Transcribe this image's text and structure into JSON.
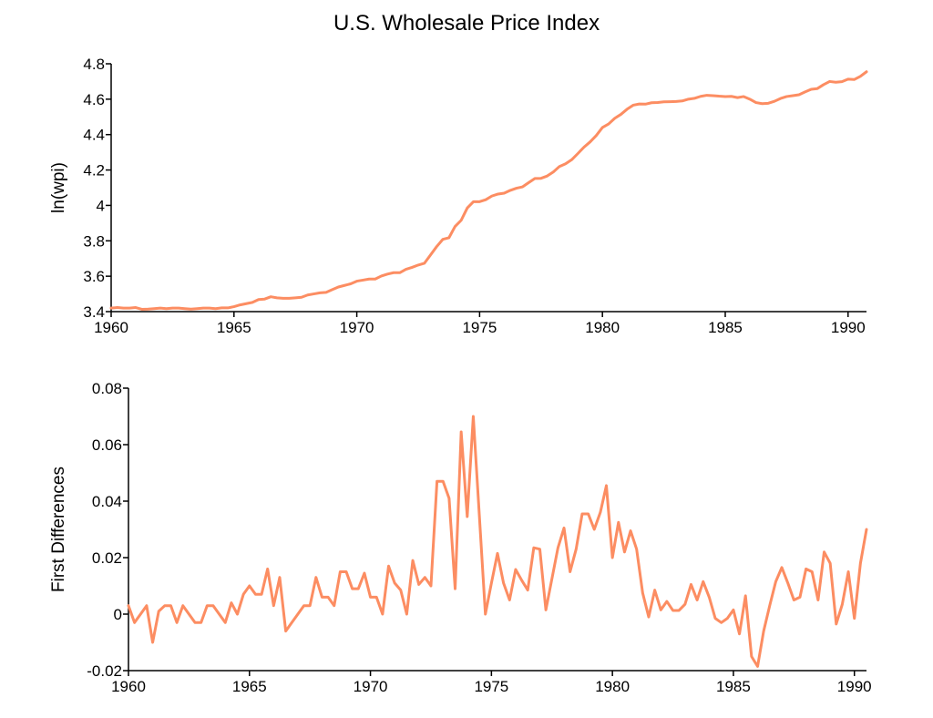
{
  "title": "U.S. Wholesale Price Index",
  "colors": {
    "series": "#fc8d62",
    "axis": "#000000"
  },
  "chart_data": [
    {
      "type": "line",
      "title": "U.S. Wholesale Price Index",
      "xlabel": "",
      "ylabel": "ln(wpi)",
      "x_start": 1960,
      "x_step": 0.25,
      "xlim": [
        1960,
        1990.75
      ],
      "ylim": [
        3.4,
        4.8
      ],
      "grid": false,
      "x_ticks": [
        "1960",
        "1965",
        "1970",
        "1975",
        "1980",
        "1985",
        "1990"
      ],
      "x_tick_values": [
        1960,
        1965,
        1970,
        1975,
        1980,
        1985,
        1990
      ],
      "y_ticks": [
        "3.4",
        "3.6",
        "3.8",
        "4",
        "4.2",
        "4.4",
        "4.6",
        "4.8"
      ],
      "y_tick_values": [
        3.4,
        3.6,
        3.8,
        4.0,
        4.2,
        4.4,
        4.6,
        4.8
      ],
      "series": [
        {
          "name": "ln(wpi)",
          "values": [
            3.42,
            3.423,
            3.42,
            3.42,
            3.423,
            3.413,
            3.414,
            3.417,
            3.42,
            3.417,
            3.42,
            3.42,
            3.417,
            3.414,
            3.417,
            3.42,
            3.42,
            3.417,
            3.421,
            3.421,
            3.428,
            3.438,
            3.445,
            3.452,
            3.468,
            3.471,
            3.484,
            3.478,
            3.475,
            3.475,
            3.478,
            3.481,
            3.494,
            3.5,
            3.506,
            3.509,
            3.524,
            3.539,
            3.548,
            3.557,
            3.572,
            3.578,
            3.584,
            3.584,
            3.601,
            3.612,
            3.62,
            3.62,
            3.639,
            3.65,
            3.663,
            3.673,
            3.72,
            3.767,
            3.808,
            3.817,
            3.881,
            3.916,
            3.986,
            4.021,
            4.021,
            4.032,
            4.053,
            4.064,
            4.069,
            4.085,
            4.097,
            4.105,
            4.129,
            4.152,
            4.153,
            4.166,
            4.189,
            4.22,
            4.235,
            4.258,
            4.293,
            4.329,
            4.359,
            4.395,
            4.44,
            4.46,
            4.492,
            4.514,
            4.543,
            4.566,
            4.573,
            4.572,
            4.58,
            4.581,
            4.585,
            4.586,
            4.587,
            4.59,
            4.6,
            4.605,
            4.616,
            4.622,
            4.62,
            4.617,
            4.615,
            4.616,
            4.609,
            4.615,
            4.6,
            4.581,
            4.575,
            4.577,
            4.588,
            4.604,
            4.615,
            4.62,
            4.625,
            4.641,
            4.656,
            4.66,
            4.682,
            4.7,
            4.696,
            4.699,
            4.713,
            4.711,
            4.729,
            4.755
          ]
        }
      ]
    },
    {
      "type": "line",
      "title": "",
      "xlabel": "",
      "ylabel": "First Differences",
      "x_start": 1960,
      "x_step": 0.25,
      "xlim": [
        1960,
        1990.5
      ],
      "ylim": [
        -0.02,
        0.08
      ],
      "grid": false,
      "x_ticks": [
        "1960",
        "1965",
        "1970",
        "1975",
        "1980",
        "1985",
        "1990"
      ],
      "x_tick_values": [
        1960,
        1965,
        1970,
        1975,
        1980,
        1985,
        1990
      ],
      "y_ticks": [
        "-0.02",
        "0",
        "0.02",
        "0.04",
        "0.06",
        "0.08"
      ],
      "y_tick_values": [
        -0.02,
        0,
        0.02,
        0.04,
        0.06,
        0.08
      ],
      "series": [
        {
          "name": "First Differences",
          "values": [
            0.003,
            -0.003,
            0,
            0.003,
            -0.01,
            0.001,
            0.003,
            0.003,
            -0.003,
            0.003,
            0,
            -0.003,
            -0.003,
            0.003,
            0.003,
            0,
            -0.003,
            0.004,
            0,
            0.007,
            0.01,
            0.007,
            0.007,
            0.016,
            0.003,
            0.013,
            -0.006,
            -0.003,
            0,
            0.003,
            0.003,
            0.013,
            0.006,
            0.006,
            0.003,
            0.015,
            0.015,
            0.009,
            0.009,
            0.0145,
            0.006,
            0.006,
            0,
            0.017,
            0.011,
            0.0085,
            0,
            0.019,
            0.0105,
            0.013,
            0.01,
            0.047,
            0.047,
            0.041,
            0.009,
            0.0645,
            0.0345,
            0.07,
            0.035,
            0,
            0.011,
            0.0215,
            0.011,
            0.005,
            0.0158,
            0.012,
            0.0085,
            0.0235,
            0.023,
            0.0015,
            0.0125,
            0.0235,
            0.0305,
            0.015,
            0.023,
            0.0355,
            0.0355,
            0.03,
            0.036,
            0.0455,
            0.02,
            0.0325,
            0.022,
            0.0295,
            0.023,
            0.0075,
            -0.001,
            0.0085,
            0.0015,
            0.0045,
            0.0013,
            0.0013,
            0.0035,
            0.0105,
            0.005,
            0.0115,
            0.006,
            -0.0015,
            -0.003,
            -0.0015,
            0.0015,
            -0.007,
            0.0065,
            -0.015,
            -0.0185,
            -0.006,
            0.003,
            0.0115,
            0.0165,
            0.011,
            0.005,
            0.006,
            0.016,
            0.015,
            0.005,
            0.022,
            0.018,
            -0.0035,
            0.0035,
            0.015,
            -0.0015,
            0.018,
            0.03
          ]
        }
      ]
    }
  ]
}
